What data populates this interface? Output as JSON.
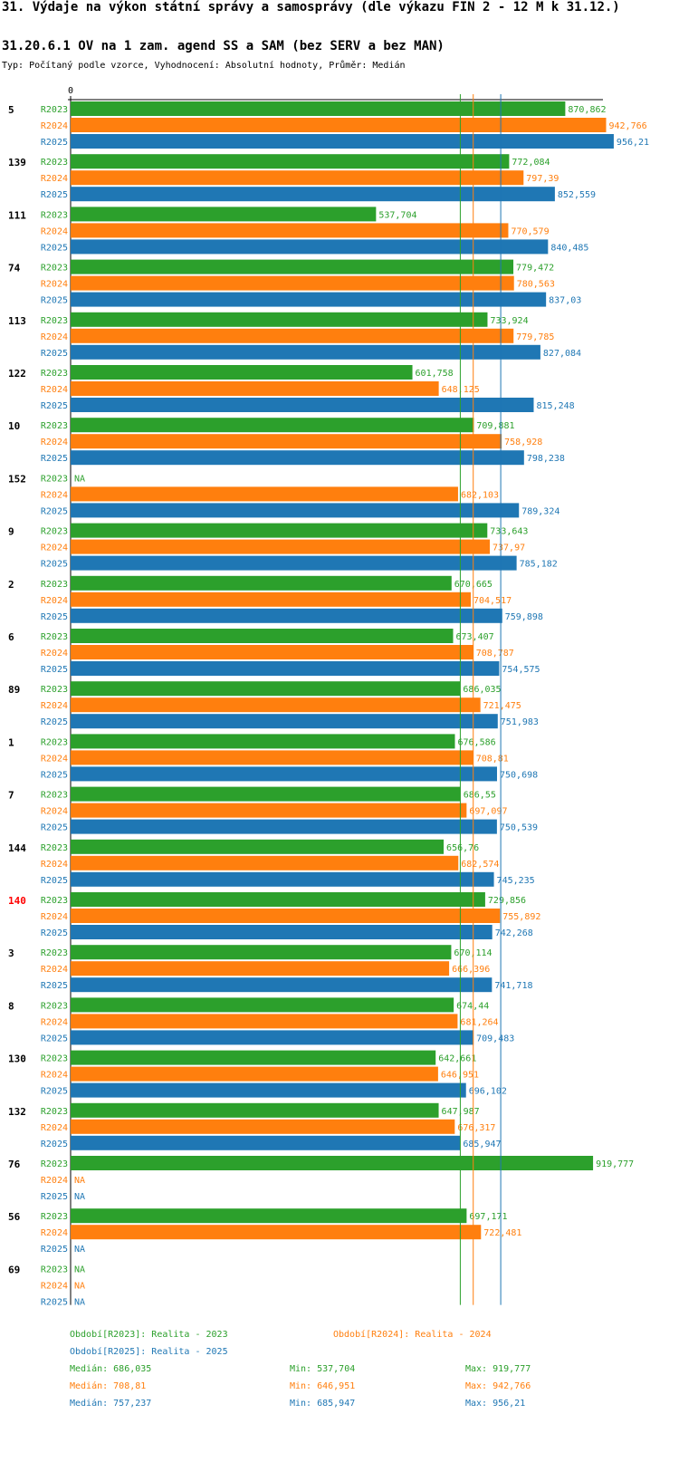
{
  "header": {
    "title": "31. Výdaje na výkon státní správy a samosprávy (dle výkazu FIN 2 - 12 M k 31.12.)",
    "subtitle": "31.20.6.1 OV na 1 zam. agend SS a SAM (bez SERV a bez MAN)",
    "type_line": "Typ: Počítaný podle vzorce, Vyhodnocení: Absolutní hodnoty, Průměr: Medián"
  },
  "colors": {
    "R2023": "#2ca02c",
    "R2024": "#ff7f0e",
    "R2025": "#1f77b4",
    "highlight": "#ff0000"
  },
  "chart_data": {
    "type": "bar",
    "orientation": "horizontal",
    "axis_zero_label": "0",
    "xlim": [
      0,
      956.21
    ],
    "series_names": [
      "R2023",
      "R2024",
      "R2025"
    ],
    "highlight_category": "140",
    "categories": [
      {
        "id": "5",
        "values": [
          870.862,
          942.766,
          956.21
        ],
        "labels": [
          "870,862",
          "942,766",
          "956,21"
        ]
      },
      {
        "id": "139",
        "values": [
          772.084,
          797.39,
          852.559
        ],
        "labels": [
          "772,084",
          "797,39",
          "852,559"
        ]
      },
      {
        "id": "111",
        "values": [
          537.704,
          770.579,
          840.485
        ],
        "labels": [
          "537,704",
          "770,579",
          "840,485"
        ]
      },
      {
        "id": "74",
        "values": [
          779.472,
          780.563,
          837.03
        ],
        "labels": [
          "779,472",
          "780,563",
          "837,03"
        ]
      },
      {
        "id": "113",
        "values": [
          733.924,
          779.785,
          827.084
        ],
        "labels": [
          "733,924",
          "779,785",
          "827,084"
        ]
      },
      {
        "id": "122",
        "values": [
          601.758,
          648.125,
          815.248
        ],
        "labels": [
          "601,758",
          "648,125",
          "815,248"
        ]
      },
      {
        "id": "10",
        "values": [
          709.881,
          758.928,
          798.238
        ],
        "labels": [
          "709,881",
          "758,928",
          "798,238"
        ]
      },
      {
        "id": "152",
        "values": [
          null,
          682.103,
          789.324
        ],
        "labels": [
          "NA",
          "682,103",
          "789,324"
        ]
      },
      {
        "id": "9",
        "values": [
          733.643,
          737.97,
          785.182
        ],
        "labels": [
          "733,643",
          "737,97",
          "785,182"
        ]
      },
      {
        "id": "2",
        "values": [
          670.665,
          704.517,
          759.898
        ],
        "labels": [
          "670,665",
          "704,517",
          "759,898"
        ]
      },
      {
        "id": "6",
        "values": [
          673.407,
          708.787,
          754.575
        ],
        "labels": [
          "673,407",
          "708,787",
          "754,575"
        ]
      },
      {
        "id": "89",
        "values": [
          686.035,
          721.475,
          751.983
        ],
        "labels": [
          "686,035",
          "721,475",
          "751,983"
        ]
      },
      {
        "id": "1",
        "values": [
          676.586,
          708.81,
          750.698
        ],
        "labels": [
          "676,586",
          "708,81",
          "750,698"
        ]
      },
      {
        "id": "7",
        "values": [
          686.55,
          697.097,
          750.539
        ],
        "labels": [
          "686,55",
          "697,097",
          "750,539"
        ]
      },
      {
        "id": "144",
        "values": [
          656.76,
          682.574,
          745.235
        ],
        "labels": [
          "656,76",
          "682,574",
          "745,235"
        ]
      },
      {
        "id": "140",
        "values": [
          729.856,
          755.892,
          742.268
        ],
        "labels": [
          "729,856",
          "755,892",
          "742,268"
        ]
      },
      {
        "id": "3",
        "values": [
          670.114,
          666.396,
          741.718
        ],
        "labels": [
          "670,114",
          "666,396",
          "741,718"
        ]
      },
      {
        "id": "8",
        "values": [
          674.44,
          681.264,
          709.483
        ],
        "labels": [
          "674,44",
          "681,264",
          "709,483"
        ]
      },
      {
        "id": "130",
        "values": [
          642.661,
          646.951,
          696.102
        ],
        "labels": [
          "642,661",
          "646,951",
          "696,102"
        ]
      },
      {
        "id": "132",
        "values": [
          647.987,
          676.317,
          685.947
        ],
        "labels": [
          "647,987",
          "676,317",
          "685,947"
        ]
      },
      {
        "id": "76",
        "values": [
          919.777,
          null,
          null
        ],
        "labels": [
          "919,777",
          "NA",
          "NA"
        ]
      },
      {
        "id": "56",
        "values": [
          697.171,
          722.481,
          null
        ],
        "labels": [
          "697,171",
          "722,481",
          "NA"
        ]
      },
      {
        "id": "69",
        "values": [
          null,
          null,
          null
        ],
        "labels": [
          "NA",
          "NA",
          "NA"
        ]
      }
    ],
    "medians": [
      686.035,
      708.81,
      757.237
    ]
  },
  "legend": {
    "r2023": "Období[R2023]: Realita - 2023",
    "r2024": "Období[R2024]: Realita - 2024",
    "r2025": "Období[R2025]: Realita - 2025",
    "stats": [
      {
        "median": "Medián: 686,035",
        "min": "Min: 537,704",
        "max": "Max: 919,777"
      },
      {
        "median": "Medián: 708,81",
        "min": "Min: 646,951",
        "max": "Max: 942,766"
      },
      {
        "median": "Medián: 757,237",
        "min": "Min: 685,947",
        "max": "Max: 956,21"
      }
    ]
  }
}
